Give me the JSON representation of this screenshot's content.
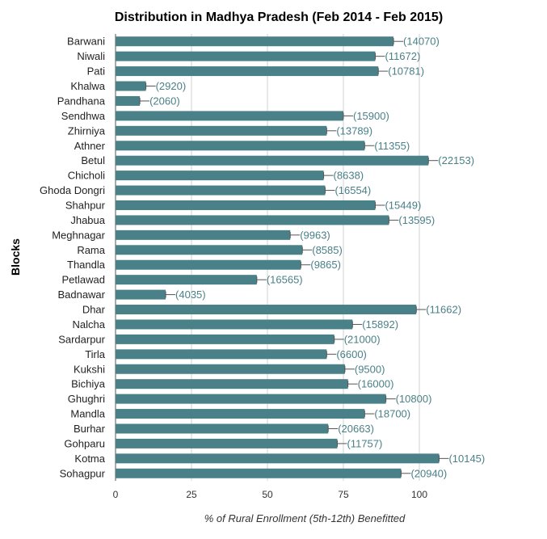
{
  "chart_data": {
    "type": "bar",
    "orientation": "horizontal",
    "title": "Distribution in Madhya Pradesh (Feb 2014 - Feb 2015)",
    "xlabel": "% of Rural Enrollment (5th-12th) Benefitted",
    "ylabel": "Blocks",
    "xlim": [
      0,
      125
    ],
    "xticks": [
      "0",
      "25",
      "50",
      "75",
      "100"
    ],
    "xtick_values": [
      0,
      25,
      50,
      75,
      100
    ],
    "grid": true,
    "bar_color": "#4a8088",
    "label_color": "#4a8088",
    "categories": [
      "Barwani",
      "Niwali",
      "Pati",
      "Khalwa",
      "Pandhana",
      "Sendhwa",
      "Zhirniya",
      "Athner",
      "Betul",
      "Chicholi",
      "Ghoda Dongri",
      "Shahpur",
      "Jhabua",
      "Meghnagar",
      "Rama",
      "Thandla",
      "Petlawad",
      "Badnawar",
      "Dhar",
      "Nalcha",
      "Sardarpur",
      "Tirla",
      "Kukshi",
      "Bichiya",
      "Ghughri",
      "Mandla",
      "Burhar",
      "Gohparu",
      "Kotma",
      "Sohagpur"
    ],
    "values": [
      91.5,
      85.5,
      86.5,
      10,
      8,
      75,
      69.5,
      82,
      103,
      68.5,
      69,
      85.5,
      90,
      57.5,
      61.5,
      61,
      46.5,
      16.5,
      99,
      78,
      72,
      69.5,
      75.5,
      76.5,
      89,
      82,
      70,
      73,
      106.5,
      94
    ],
    "data_labels": [
      "(14070)",
      "(11672)",
      "(10781)",
      "(2920)",
      "(2060)",
      "(15900)",
      "(13789)",
      "(11355)",
      "(22153)",
      "(8638)",
      "(16554)",
      "(15449)",
      "(13595)",
      "(9963)",
      "(8585)",
      "(9865)",
      "(16565)",
      "(4035)",
      "(11662)",
      "(15892)",
      "(21000)",
      "(6600)",
      "(9500)",
      "(16000)",
      "(10800)",
      "(18700)",
      "(20663)",
      "(11757)",
      "(10145)",
      "(20940)"
    ]
  }
}
